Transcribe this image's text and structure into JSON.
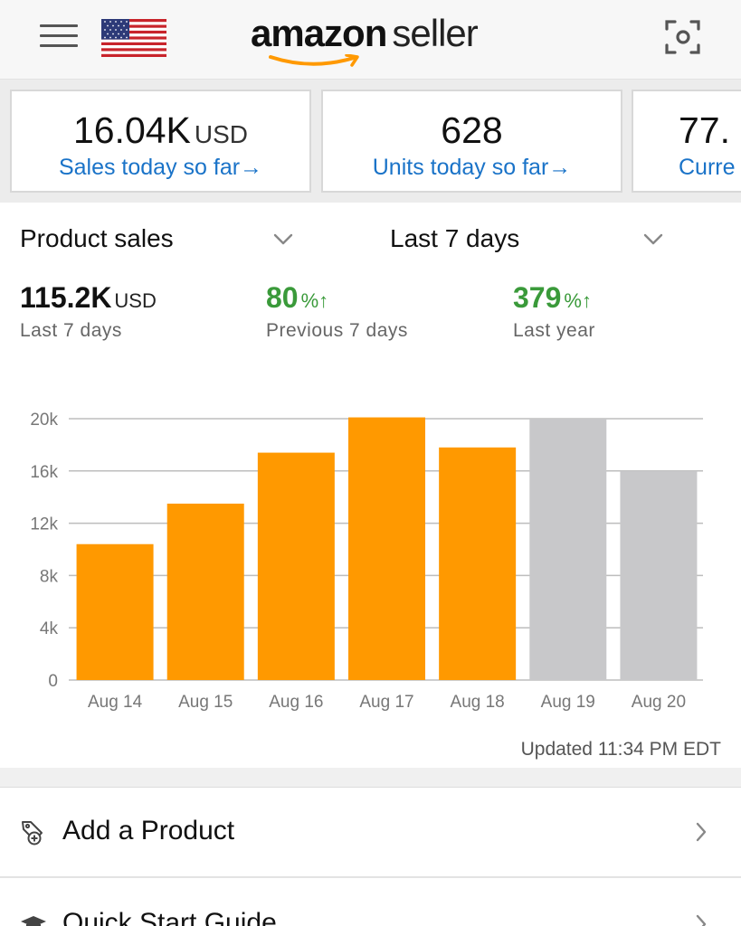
{
  "header": {
    "logo_amazon": "amazon",
    "logo_seller": "seller",
    "flag": "us-flag-icon"
  },
  "cards": [
    {
      "value": "16.04K",
      "unit": "USD",
      "link": "Sales today so far→"
    },
    {
      "value": "628",
      "unit": "",
      "link": "Units today so far→"
    },
    {
      "value": "77.",
      "unit": "",
      "link": "Curre"
    }
  ],
  "filters": {
    "metric": "Product sales",
    "period": "Last 7 days"
  },
  "stats": {
    "total": {
      "value": "115.2K",
      "unit": "USD",
      "label": "Last 7 days"
    },
    "prev": {
      "value": "80",
      "unit": "%↑",
      "label": "Previous 7 days"
    },
    "year": {
      "value": "379",
      "unit": "%↑",
      "label": "Last year"
    }
  },
  "chart_data": {
    "type": "bar",
    "categories": [
      "Aug 14",
      "Aug 15",
      "Aug 16",
      "Aug 17",
      "Aug 18",
      "Aug 19",
      "Aug 20"
    ],
    "values": [
      10400,
      13500,
      17400,
      20100,
      17800,
      20000,
      16000
    ],
    "highlighted": [
      true,
      true,
      true,
      true,
      true,
      false,
      false
    ],
    "colors": {
      "highlight": "#ff9900",
      "muted": "#c8c8ca"
    },
    "y_ticks": [
      "0",
      "4k",
      "8k",
      "12k",
      "16k",
      "20k"
    ],
    "ylim": [
      0,
      20000
    ],
    "grid": true,
    "title": "",
    "xlabel": "",
    "ylabel": ""
  },
  "updated": "Updated 11:34 PM EDT",
  "menu": [
    {
      "label": "Add a Product",
      "icon": "add-product-icon"
    },
    {
      "label": "Quick Start Guide",
      "icon": "graduation-cap-icon"
    }
  ],
  "colors": {
    "link": "#1a73c8",
    "positive": "#3a9a3a",
    "amazon_orange": "#ff9900"
  }
}
